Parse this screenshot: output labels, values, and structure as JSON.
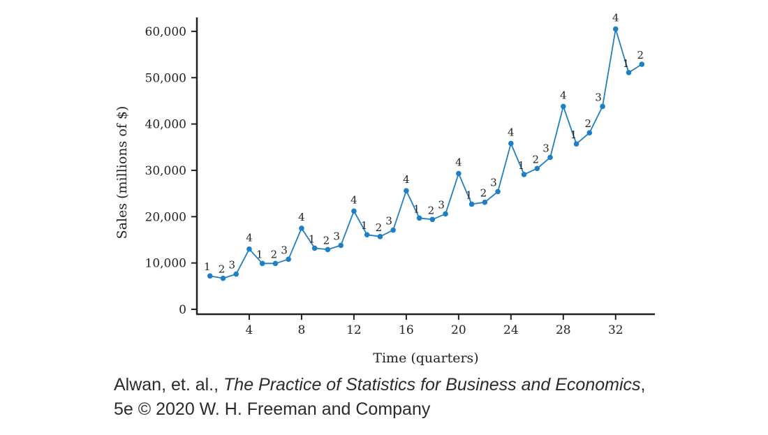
{
  "chart_data": {
    "type": "line",
    "xlabel": "Time (quarters)",
    "ylabel": "Sales (millions of $)",
    "xlim": [
      0,
      35
    ],
    "ylim": [
      0,
      63000
    ],
    "x_ticks": [
      4,
      8,
      12,
      16,
      20,
      24,
      28,
      32
    ],
    "y_ticks": [
      0,
      10000,
      20000,
      30000,
      40000,
      50000,
      60000
    ],
    "y_tick_labels": [
      "0",
      "10,000",
      "20,000",
      "30,000",
      "40,000",
      "50,000",
      "60,000"
    ],
    "grid": false,
    "line_color": "#1f7fc4",
    "x": [
      1,
      2,
      3,
      4,
      5,
      6,
      7,
      8,
      9,
      10,
      11,
      12,
      13,
      14,
      15,
      16,
      17,
      18,
      19,
      20,
      21,
      22,
      23,
      24,
      25,
      26,
      27,
      28,
      29,
      30,
      31,
      32,
      33,
      34
    ],
    "values": [
      7200,
      6700,
      7600,
      13000,
      9900,
      9900,
      10800,
      17500,
      13200,
      12900,
      13800,
      21200,
      16100,
      15700,
      17100,
      25600,
      19700,
      19400,
      20600,
      29300,
      22700,
      23100,
      25400,
      35800,
      29100,
      30400,
      32800,
      43800,
      35700,
      38100,
      43800,
      60500,
      51100,
      52900
    ],
    "quarter_labels": [
      "1",
      "2",
      "3",
      "4",
      "1",
      "2",
      "3",
      "4",
      "1",
      "2",
      "3",
      "4",
      "1",
      "2",
      "3",
      "4",
      "1",
      "2",
      "3",
      "4",
      "1",
      "2",
      "3",
      "4",
      "1",
      "2",
      "3",
      "4",
      "1",
      "2",
      "3",
      "4",
      "1",
      "2"
    ]
  },
  "caption": {
    "line1_prefix": "Alwan, et. al., ",
    "line1_italic": "The Practice of Statistics for Business and Economics",
    "line1_suffix": ",",
    "line2": "5e © 2020 W. H. Freeman and Company"
  }
}
